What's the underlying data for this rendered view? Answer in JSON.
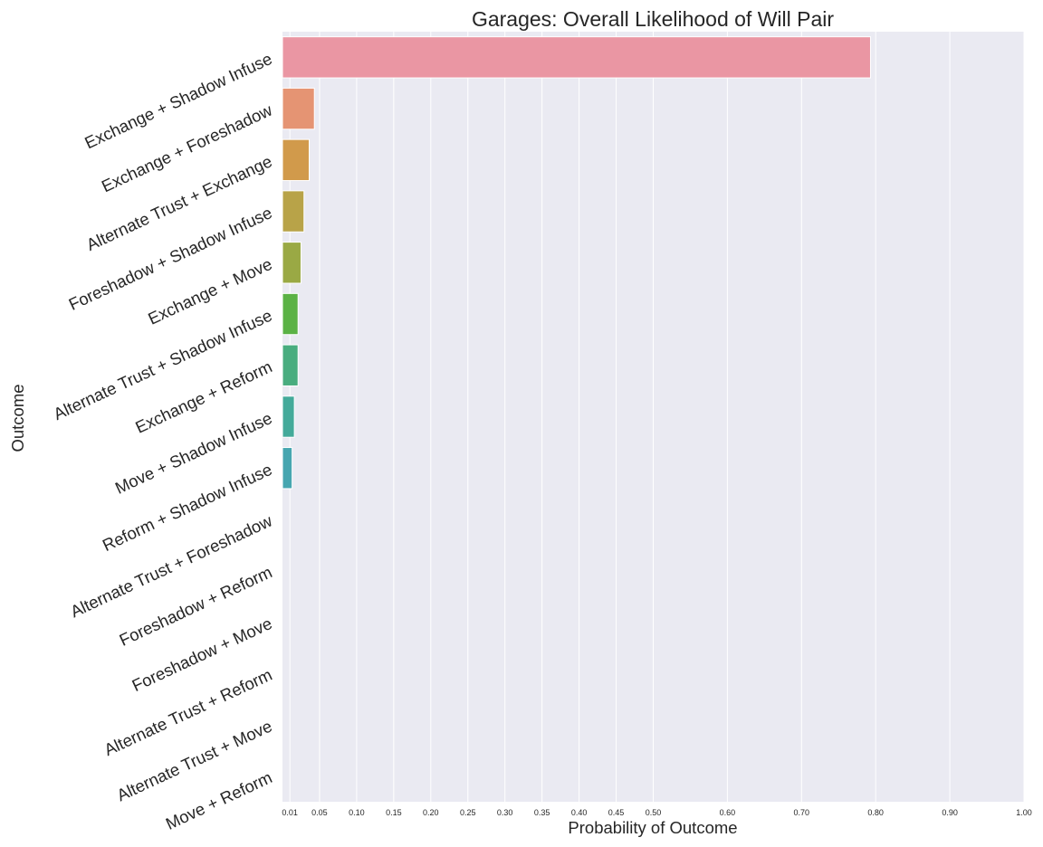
{
  "chart_data": {
    "type": "bar",
    "orientation": "horizontal",
    "title": "Garages: Overall Likelihood of Will Pair",
    "xlabel": "Probability of Outcome",
    "ylabel": "Outcome",
    "xlim": [
      0,
      1.0
    ],
    "x_ticks": [
      0.01,
      0.05,
      0.1,
      0.15,
      0.2,
      0.25,
      0.3,
      0.35,
      0.4,
      0.45,
      0.5,
      0.6,
      0.7,
      0.8,
      0.9,
      1.0
    ],
    "x_tick_labels": [
      "0.01",
      "0.05",
      "0.10",
      "0.15",
      "0.20",
      "0.25",
      "0.30",
      "0.35",
      "0.40",
      "0.45",
      "0.50",
      "0.60",
      "0.70",
      "0.80",
      "0.90",
      "1.00"
    ],
    "grid": true,
    "categories": [
      "Exchange + Shadow Infuse",
      "Exchange + Foreshadow",
      "Alternate Trust + Exchange",
      "Foreshadow + Shadow Infuse",
      "Exchange + Move",
      "Alternate Trust + Shadow Infuse",
      "Exchange + Reform",
      "Move + Shadow Infuse",
      "Reform + Shadow Infuse",
      "Alternate Trust + Foreshadow",
      "Foreshadow + Reform",
      "Foreshadow + Move",
      "Alternate Trust + Reform",
      "Alternate Trust + Move",
      "Move + Reform"
    ],
    "values": [
      0.793,
      0.043,
      0.036,
      0.029,
      0.025,
      0.021,
      0.021,
      0.016,
      0.013,
      0.0,
      0.0,
      0.0,
      0.0,
      0.0,
      0.0
    ],
    "colors": [
      "#ea96a3",
      "#e59473",
      "#d19a4b",
      "#b8a348",
      "#9aa944",
      "#5bb245",
      "#49ad7f",
      "#44aa9a",
      "#46a6b0",
      "#4ca4c9",
      "#7ba3e1",
      "#a5a1ed",
      "#cf94ea",
      "#e88ad8",
      "#e98eba"
    ],
    "style": {
      "background": "#eaeaf2",
      "grid_color": "#ffffff"
    }
  }
}
